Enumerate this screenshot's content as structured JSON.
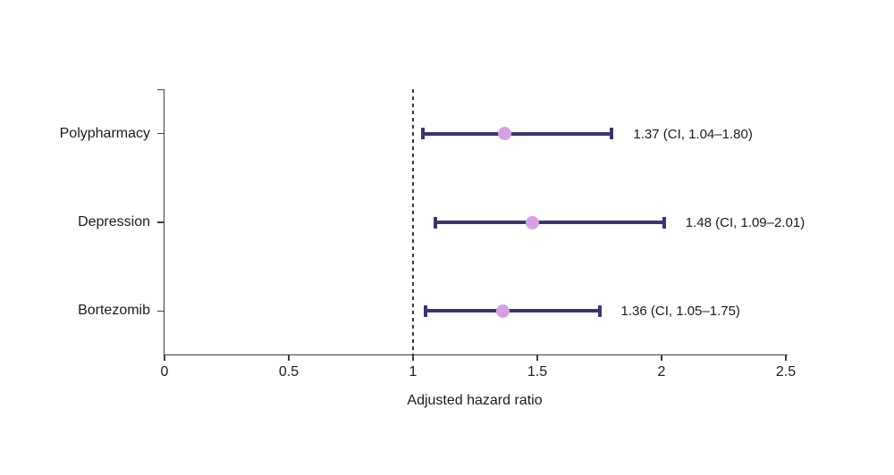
{
  "chart_data": {
    "type": "forest",
    "title": "",
    "xlabel": "Adjusted hazard ratio",
    "xlim": [
      0,
      2.5
    ],
    "xticks": [
      0,
      0.5,
      1,
      1.5,
      2,
      2.5
    ],
    "xtick_labels": [
      "0",
      "0.5",
      "1",
      "1.5",
      "2",
      "2.5"
    ],
    "reference_line_x": 1,
    "grid": "off",
    "categories": [
      "Polypharmacy",
      "Depression",
      "Bortezomib"
    ],
    "series": [
      {
        "name": "Polypharmacy",
        "value": 1.37,
        "ci_low": 1.04,
        "ci_high": 1.8,
        "label": "1.37 (CI, 1.04–1.80)"
      },
      {
        "name": "Depression",
        "value": 1.48,
        "ci_low": 1.09,
        "ci_high": 2.01,
        "label": "1.48 (CI, 1.09–2.01)"
      },
      {
        "name": "Bortezomib",
        "value": 1.36,
        "ci_low": 1.05,
        "ci_high": 1.75,
        "label": "1.36 (CI, 1.05–1.75)"
      }
    ],
    "colors": {
      "ci_bar": "#3a356e",
      "marker": "#d7a0e6",
      "axis": "#3f3f3f",
      "text": "#1a1a1a",
      "reference_line": "#3a3a3a",
      "background": "#ffffff"
    }
  }
}
